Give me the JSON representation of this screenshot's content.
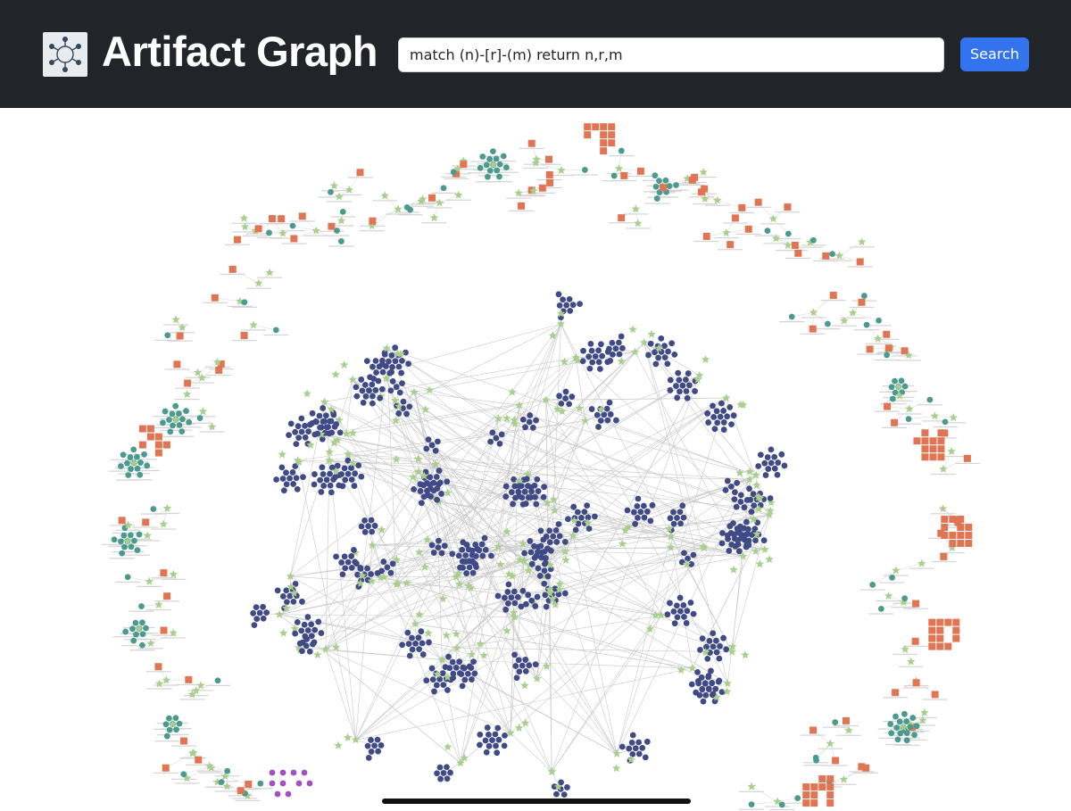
{
  "header": {
    "title": "Artifact Graph"
  },
  "search": {
    "query": "match (n)-[r]-(m) return n,r,m",
    "button": "Search"
  }
}
